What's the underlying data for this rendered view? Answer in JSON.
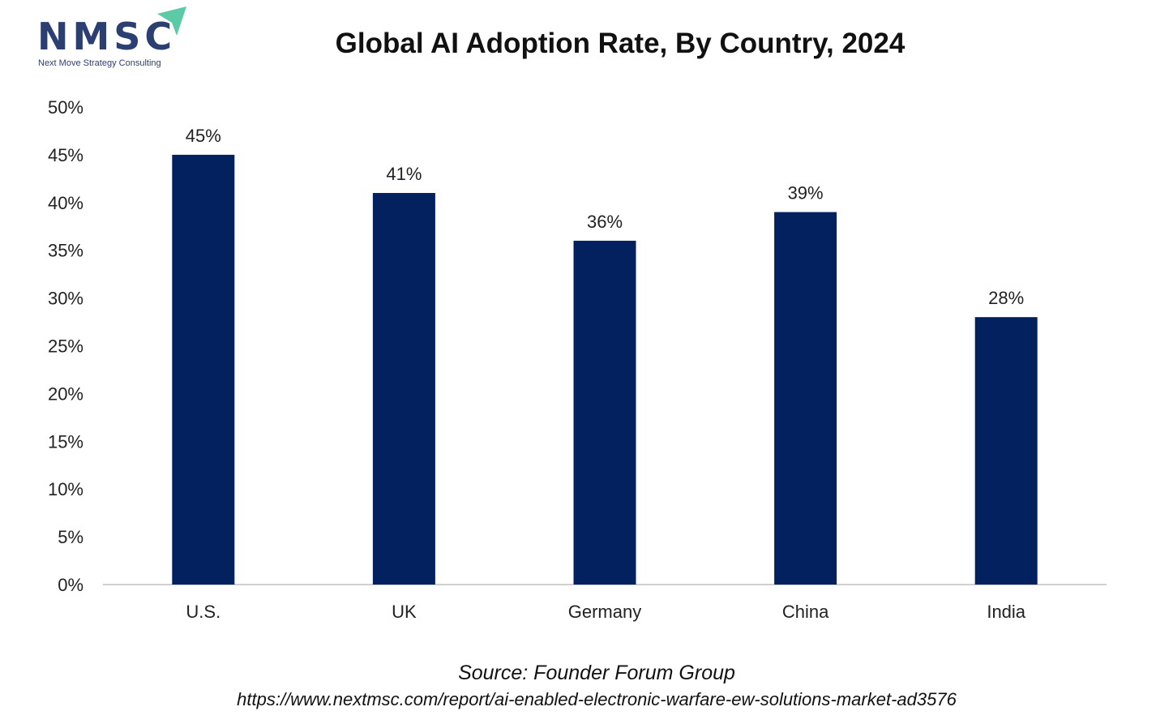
{
  "logo": {
    "letters": "NMSC",
    "tagline": "Next Move Strategy Consulting",
    "text_color": "#2b3f73",
    "arrow_color": "#5cc9a7"
  },
  "source": {
    "text": "Source: Founder Forum Group",
    "url": "https://www.nextmsc.com/report/ai-enabled-electronic-warfare-ew-solutions-market-ad3576"
  },
  "chart_data": {
    "type": "bar",
    "title": "Global AI Adoption Rate, By Country, 2024",
    "xlabel": "",
    "ylabel": "",
    "categories": [
      "U.S.",
      "UK",
      "Germany",
      "China",
      "India"
    ],
    "values": [
      45,
      41,
      36,
      39,
      28
    ],
    "value_labels": [
      "45%",
      "41%",
      "36%",
      "39%",
      "28%"
    ],
    "ylim": [
      0,
      50
    ],
    "yticks": [
      "0%",
      "5%",
      "10%",
      "15%",
      "20%",
      "25%",
      "30%",
      "35%",
      "40%",
      "45%",
      "50%"
    ],
    "grid": false,
    "legend": "none",
    "bar_color": "#03205f",
    "axis_color": "#d0d0d0"
  }
}
